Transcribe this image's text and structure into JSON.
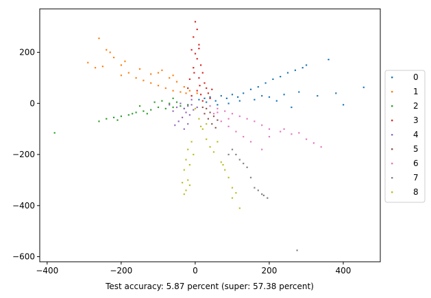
{
  "chart_data": {
    "type": "scatter",
    "title": "",
    "xlabel": "Test accuracy: 5.87 percent (super: 57.38 percent)",
    "ylabel": "",
    "xlim": [
      -420,
      500
    ],
    "ylim": [
      -620,
      370
    ],
    "xticks": [
      -400,
      -200,
      0,
      200,
      400
    ],
    "yticks": [
      200,
      0,
      -200,
      -400,
      -600
    ],
    "xtick_labels": [
      "−400",
      "−200",
      "0",
      "200",
      "400"
    ],
    "ytick_labels": [
      "200",
      "0",
      "−200",
      "−400",
      "−600"
    ],
    "grid": false,
    "legend_position": "right, outside plot",
    "colors": [
      "#1f77b4",
      "#ff7f0e",
      "#2ca02c",
      "#d62728",
      "#9467bd",
      "#8c564b",
      "#e377c2",
      "#7f7f7f",
      "#bcbd22"
    ],
    "series": [
      {
        "name": "0",
        "points": [
          [
            10,
            15
          ],
          [
            25,
            20
          ],
          [
            40,
            25
          ],
          [
            55,
            10
          ],
          [
            70,
            30
          ],
          [
            85,
            20
          ],
          [
            100,
            35
          ],
          [
            115,
            25
          ],
          [
            130,
            40
          ],
          [
            150,
            55
          ],
          [
            170,
            65
          ],
          [
            190,
            80
          ],
          [
            210,
            95
          ],
          [
            230,
            105
          ],
          [
            250,
            120
          ],
          [
            270,
            130
          ],
          [
            290,
            140
          ],
          [
            300,
            150
          ],
          [
            360,
            172
          ],
          [
            455,
            63
          ],
          [
            280,
            45
          ],
          [
            240,
            35
          ],
          [
            200,
            25
          ],
          [
            160,
            15
          ],
          [
            120,
            10
          ],
          [
            90,
            0
          ],
          [
            60,
            -5
          ],
          [
            30,
            5
          ],
          [
            380,
            40
          ],
          [
            400,
            -5
          ],
          [
            330,
            30
          ],
          [
            260,
            -15
          ],
          [
            220,
            10
          ],
          [
            180,
            30
          ]
        ]
      },
      {
        "name": "1",
        "points": [
          [
            -10,
            30
          ],
          [
            -25,
            40
          ],
          [
            -40,
            45
          ],
          [
            -60,
            50
          ],
          [
            -80,
            60
          ],
          [
            -100,
            70
          ],
          [
            -120,
            80
          ],
          [
            -140,
            90
          ],
          [
            -160,
            100
          ],
          [
            -180,
            120
          ],
          [
            -200,
            150
          ],
          [
            -220,
            180
          ],
          [
            -230,
            200
          ],
          [
            -240,
            210
          ],
          [
            -260,
            255
          ],
          [
            -270,
            140
          ],
          [
            -290,
            160
          ],
          [
            -250,
            145
          ],
          [
            -190,
            165
          ],
          [
            -120,
            115
          ],
          [
            -90,
            130
          ],
          [
            -70,
            100
          ],
          [
            -50,
            85
          ],
          [
            -30,
            65
          ],
          [
            -15,
            50
          ],
          [
            5,
            40
          ],
          [
            -200,
            110
          ],
          [
            -150,
            135
          ],
          [
            -100,
            120
          ],
          [
            -60,
            110
          ]
        ]
      },
      {
        "name": "2",
        "points": [
          [
            -20,
            -5
          ],
          [
            -40,
            -10
          ],
          [
            -60,
            -15
          ],
          [
            -80,
            -20
          ],
          [
            -100,
            -15
          ],
          [
            -120,
            -25
          ],
          [
            -140,
            -30
          ],
          [
            -160,
            -35
          ],
          [
            -180,
            -45
          ],
          [
            -200,
            -50
          ],
          [
            -220,
            -55
          ],
          [
            -240,
            -60
          ],
          [
            -260,
            -70
          ],
          [
            -380,
            -115
          ],
          [
            -110,
            5
          ],
          [
            -90,
            10
          ],
          [
            -70,
            0
          ],
          [
            -50,
            5
          ],
          [
            -30,
            -20
          ],
          [
            -130,
            -40
          ],
          [
            -170,
            -40
          ],
          [
            -210,
            -65
          ],
          [
            -150,
            -10
          ],
          [
            -60,
            20
          ]
        ]
      },
      {
        "name": "3",
        "points": [
          [
            0,
            320
          ],
          [
            5,
            290
          ],
          [
            -5,
            260
          ],
          [
            10,
            230
          ],
          [
            -10,
            210
          ],
          [
            0,
            195
          ],
          [
            5,
            175
          ],
          [
            15,
            150
          ],
          [
            -5,
            140
          ],
          [
            20,
            120
          ],
          [
            10,
            100
          ],
          [
            -15,
            95
          ],
          [
            25,
            80
          ],
          [
            30,
            60
          ],
          [
            5,
            50
          ],
          [
            15,
            35
          ],
          [
            -10,
            30
          ],
          [
            35,
            40
          ],
          [
            40,
            20
          ],
          [
            20,
            10
          ],
          [
            45,
            55
          ],
          [
            -20,
            60
          ],
          [
            10,
            215
          ],
          [
            -3,
            120
          ],
          [
            12,
            70
          ]
        ]
      },
      {
        "name": "4",
        "points": [
          [
            -10,
            -5
          ],
          [
            -20,
            -10
          ],
          [
            -30,
            -20
          ],
          [
            -40,
            0
          ],
          [
            -50,
            -15
          ],
          [
            -25,
            -35
          ],
          [
            -15,
            -45
          ],
          [
            -5,
            -25
          ],
          [
            5,
            -15
          ],
          [
            -35,
            -55
          ],
          [
            -45,
            -70
          ],
          [
            -55,
            -85
          ],
          [
            -30,
            -100
          ],
          [
            -20,
            -80
          ],
          [
            -60,
            -30
          ],
          [
            -70,
            -5
          ],
          [
            -10,
            15
          ]
        ]
      },
      {
        "name": "5",
        "points": [
          [
            30,
            -20
          ],
          [
            40,
            -35
          ],
          [
            50,
            -50
          ],
          [
            60,
            -65
          ],
          [
            25,
            -40
          ],
          [
            45,
            -80
          ],
          [
            35,
            -60
          ],
          [
            55,
            -95
          ],
          [
            20,
            -15
          ]
        ]
      },
      {
        "name": "6",
        "points": [
          [
            40,
            -10
          ],
          [
            60,
            -20
          ],
          [
            80,
            -30
          ],
          [
            100,
            -40
          ],
          [
            120,
            -50
          ],
          [
            140,
            -60
          ],
          [
            160,
            -70
          ],
          [
            180,
            -85
          ],
          [
            200,
            -100
          ],
          [
            230,
            -110
          ],
          [
            260,
            -120
          ],
          [
            280,
            -115
          ],
          [
            320,
            -155
          ],
          [
            340,
            -170
          ],
          [
            180,
            -180
          ],
          [
            150,
            -150
          ],
          [
            130,
            -130
          ],
          [
            110,
            -110
          ],
          [
            90,
            -90
          ],
          [
            70,
            -70
          ],
          [
            50,
            -40
          ],
          [
            200,
            -130
          ],
          [
            240,
            -100
          ],
          [
            90,
            -60
          ],
          [
            300,
            -140
          ],
          [
            60,
            -35
          ]
        ]
      },
      {
        "name": "7",
        "points": [
          [
            100,
            -180
          ],
          [
            120,
            -220
          ],
          [
            140,
            -250
          ],
          [
            160,
            -330
          ],
          [
            170,
            -340
          ],
          [
            180,
            -355
          ],
          [
            195,
            -370
          ],
          [
            150,
            -290
          ],
          [
            90,
            -200
          ],
          [
            130,
            -235
          ],
          [
            185,
            -360
          ],
          [
            275,
            -575
          ],
          [
            110,
            -200
          ]
        ]
      },
      {
        "name": "8",
        "points": [
          [
            0,
            -20
          ],
          [
            10,
            -60
          ],
          [
            20,
            -100
          ],
          [
            30,
            -140
          ],
          [
            -20,
            -180
          ],
          [
            -25,
            -220
          ],
          [
            -30,
            -260
          ],
          [
            -20,
            -300
          ],
          [
            -25,
            -340
          ],
          [
            -30,
            -355
          ],
          [
            -15,
            -240
          ],
          [
            -5,
            -200
          ],
          [
            60,
            -150
          ],
          [
            50,
            -190
          ],
          [
            70,
            -230
          ],
          [
            80,
            -260
          ],
          [
            90,
            -290
          ],
          [
            100,
            -330
          ],
          [
            110,
            -350
          ],
          [
            120,
            -410
          ],
          [
            100,
            -370
          ],
          [
            75,
            -240
          ],
          [
            40,
            -170
          ],
          [
            -10,
            -150
          ],
          [
            -35,
            -310
          ],
          [
            -15,
            -320
          ],
          [
            15,
            -90
          ],
          [
            30,
            -80
          ]
        ]
      }
    ]
  }
}
